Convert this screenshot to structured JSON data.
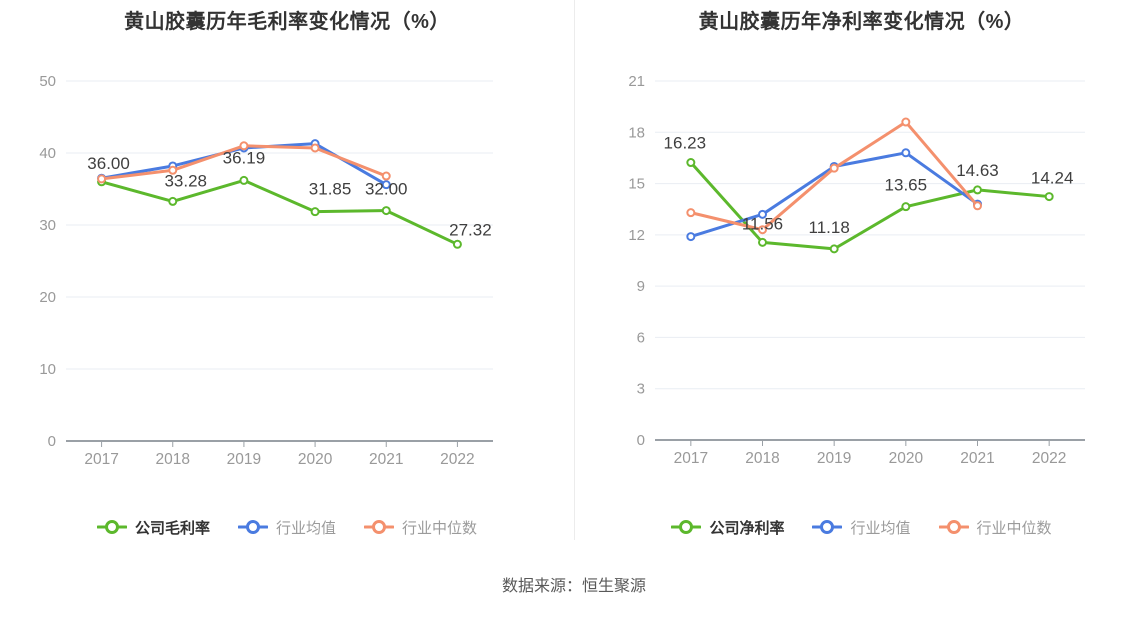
{
  "page": {
    "footer_source": "数据来源：恒生聚源"
  },
  "colors": {
    "company_green": "#5cb82c",
    "industry_avg_blue": "#4a7be0",
    "industry_median_orange": "#f4906d",
    "grid_line": "#e9edf3",
    "axis_line": "#9aa0a6",
    "tick_label": "#999999",
    "data_label": "#3f3f3f",
    "title_text": "#333333",
    "footer_text": "#595959",
    "panel_divider": "#ececec"
  },
  "chart_data": [
    {
      "type": "line",
      "title": "黄山胶囊历年毛利率变化情况（%）",
      "categories": [
        "2017",
        "2018",
        "2019",
        "2020",
        "2021",
        "2022"
      ],
      "xlabel": "",
      "ylabel": "",
      "ylim": [
        0,
        50
      ],
      "ytick_step": 10,
      "yticks": [
        0,
        10,
        20,
        30,
        40,
        50
      ],
      "grid": true,
      "legend_position": "bottom",
      "series": [
        {
          "name": "公司毛利率",
          "color": "#5cb82c",
          "values": [
            36.0,
            33.28,
            36.19,
            31.85,
            32.0,
            27.32
          ],
          "point_labels": [
            "36.00",
            "33.28",
            "36.19",
            "31.85",
            "32.00",
            "27.32"
          ],
          "label_offsets": [
            [
              7,
              -13
            ],
            [
              13,
              -15
            ],
            [
              0,
              -17
            ],
            [
              15,
              -17
            ],
            [
              0,
              -16
            ],
            [
              13,
              -9
            ]
          ]
        },
        {
          "name": "行业均值",
          "color": "#4a7be0",
          "values": [
            36.5,
            38.2,
            40.7,
            41.3,
            35.6,
            null
          ]
        },
        {
          "name": "行业中位数",
          "color": "#f4906d",
          "values": [
            36.4,
            37.6,
            41.0,
            40.7,
            36.8,
            null
          ]
        }
      ]
    },
    {
      "type": "line",
      "title": "黄山胶囊历年净利率变化情况（%）",
      "categories": [
        "2017",
        "2018",
        "2019",
        "2020",
        "2021",
        "2022"
      ],
      "xlabel": "",
      "ylabel": "",
      "ylim": [
        0,
        21
      ],
      "ytick_step": 3,
      "yticks": [
        0,
        3,
        6,
        9,
        12,
        15,
        18,
        21
      ],
      "grid": true,
      "legend_position": "bottom",
      "series": [
        {
          "name": "公司净利率",
          "color": "#5cb82c",
          "values": [
            16.23,
            11.56,
            11.18,
            13.65,
            14.63,
            14.24
          ],
          "point_labels": [
            "16.23",
            "11.56",
            "11.18",
            "13.65",
            "14.63",
            "14.24"
          ],
          "label_offsets": [
            [
              -6,
              -14
            ],
            [
              0,
              -13
            ],
            [
              -5,
              -16
            ],
            [
              0,
              -16
            ],
            [
              0,
              -14
            ],
            [
              3,
              -13
            ]
          ]
        },
        {
          "name": "行业均值",
          "color": "#4a7be0",
          "values": [
            11.9,
            13.2,
            16.0,
            16.8,
            13.8,
            null
          ]
        },
        {
          "name": "行业中位数",
          "color": "#f4906d",
          "values": [
            13.3,
            12.3,
            15.9,
            18.6,
            13.7,
            null
          ]
        }
      ]
    }
  ]
}
